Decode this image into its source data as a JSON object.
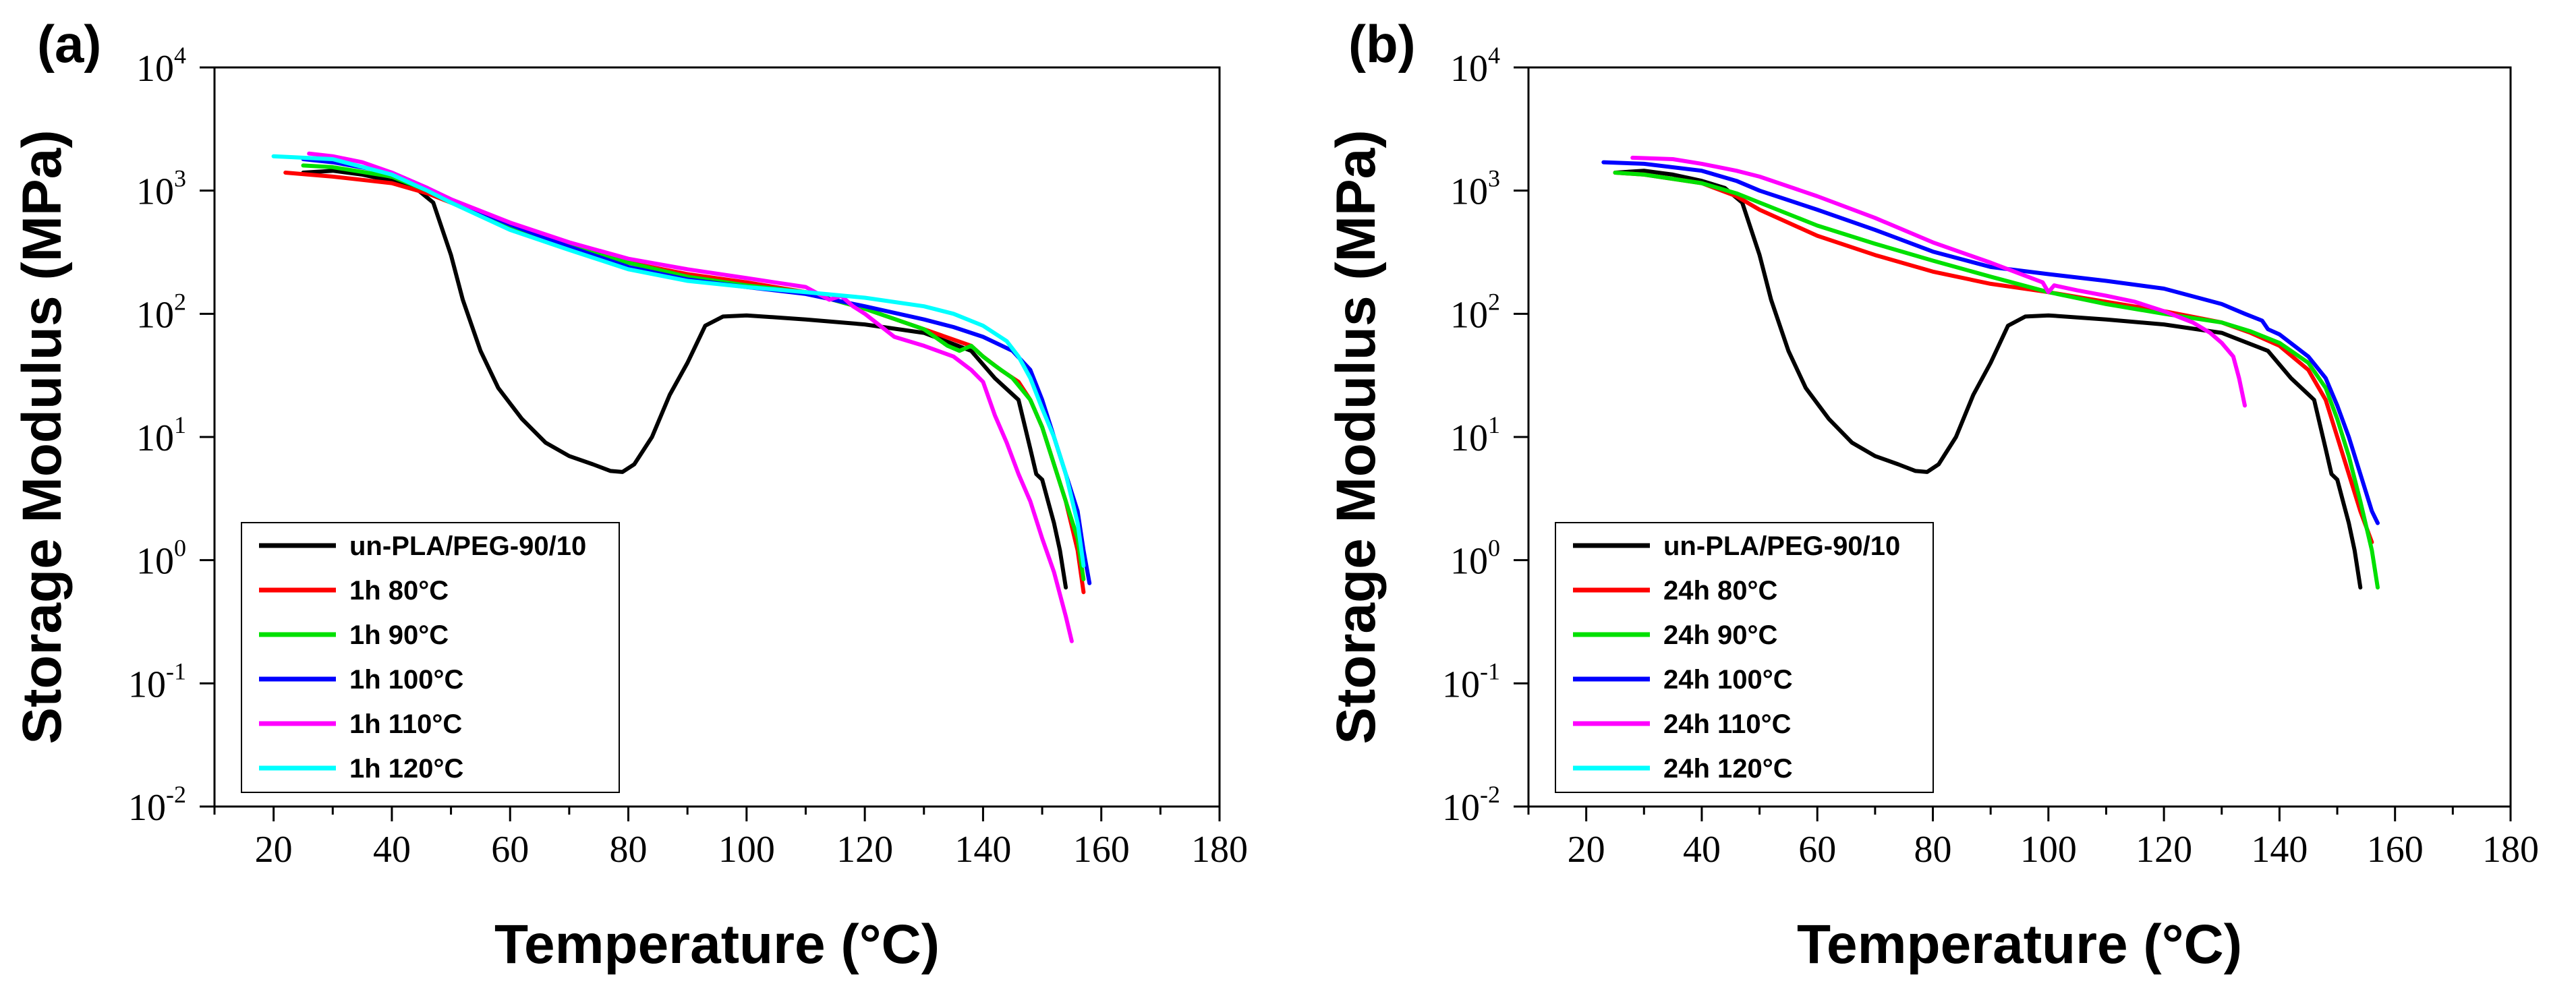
{
  "chart_data": [
    {
      "type": "line",
      "panel_label": "(a)",
      "xlabel": "Temperature (°C)",
      "ylabel": "Storage Modulus (MPa)",
      "xlim": [
        10,
        180
      ],
      "ylim": [
        0.01,
        10000
      ],
      "yscale": "log",
      "xticks": [
        20,
        40,
        60,
        80,
        100,
        120,
        140,
        160,
        180
      ],
      "xtick_labels": [
        "20",
        "40",
        "60",
        "80",
        "100",
        "120",
        "140",
        "160",
        "180"
      ],
      "yticks": [
        {
          "value": 0.01,
          "base": "10",
          "exp": "-2"
        },
        {
          "value": 0.1,
          "base": "10",
          "exp": "-1"
        },
        {
          "value": 1,
          "base": "10",
          "exp": "0"
        },
        {
          "value": 10,
          "base": "10",
          "exp": "1"
        },
        {
          "value": 100,
          "base": "10",
          "exp": "2"
        },
        {
          "value": 1000,
          "base": "10",
          "exp": "3"
        },
        {
          "value": 10000,
          "base": "10",
          "exp": "4"
        }
      ],
      "grid": false,
      "legend_position": "bottom-left",
      "series": [
        {
          "name": "un-PLA/PEG-90/10",
          "color": "#000000",
          "x": [
            25,
            30,
            35,
            40,
            44,
            47,
            50,
            52,
            55,
            58,
            62,
            66,
            70,
            74,
            77,
            79,
            81,
            84,
            87,
            90,
            93,
            96,
            100,
            110,
            120,
            130,
            138,
            142,
            146,
            148,
            149,
            150,
            151,
            152,
            153,
            154
          ],
          "y": [
            1400,
            1450,
            1350,
            1200,
            1050,
            800,
            300,
            130,
            50,
            25,
            14,
            9,
            7,
            6,
            5.3,
            5.2,
            6,
            10,
            22,
            40,
            80,
            95,
            97,
            90,
            82,
            70,
            50,
            30,
            20,
            8,
            5,
            4.5,
            3,
            2,
            1.2,
            0.6
          ]
        },
        {
          "name": "1h 80°C",
          "color": "#ff0000",
          "x": [
            22,
            30,
            40,
            46,
            50,
            60,
            70,
            80,
            90,
            100,
            110,
            120,
            130,
            138,
            140,
            143,
            146,
            148,
            150,
            152,
            154,
            156,
            157
          ],
          "y": [
            1400,
            1300,
            1150,
            950,
            800,
            500,
            350,
            260,
            210,
            180,
            150,
            110,
            75,
            55,
            45,
            35,
            28,
            20,
            12,
            6,
            3,
            1.2,
            0.55
          ]
        },
        {
          "name": "1h 90°C",
          "color": "#00e000",
          "x": [
            25,
            30,
            40,
            46,
            50,
            60,
            70,
            80,
            90,
            100,
            110,
            120,
            130,
            134,
            136,
            138,
            140,
            142,
            145,
            148,
            150,
            152,
            154,
            156,
            157
          ],
          "y": [
            1600,
            1550,
            1300,
            1000,
            800,
            500,
            360,
            260,
            200,
            170,
            150,
            110,
            75,
            55,
            50,
            55,
            45,
            38,
            30,
            20,
            12,
            6,
            3,
            1.5,
            0.7
          ]
        },
        {
          "name": "1h 100°C",
          "color": "#0000ff",
          "x": [
            25,
            30,
            40,
            46,
            50,
            60,
            70,
            80,
            90,
            100,
            110,
            120,
            130,
            135,
            140,
            145,
            148,
            150,
            152,
            154,
            156,
            157,
            158
          ],
          "y": [
            1800,
            1700,
            1400,
            1050,
            850,
            530,
            350,
            240,
            190,
            165,
            145,
            115,
            90,
            78,
            65,
            50,
            35,
            20,
            10,
            5,
            2.5,
            1.2,
            0.65
          ]
        },
        {
          "name": "1h 110°C",
          "color": "#ff00ff",
          "x": [
            26,
            30,
            35,
            40,
            46,
            50,
            60,
            70,
            80,
            90,
            100,
            110,
            114,
            116,
            118,
            120,
            125,
            130,
            135,
            138,
            140,
            142,
            144,
            146,
            148,
            150,
            152,
            154,
            155
          ],
          "y": [
            2000,
            1900,
            1700,
            1400,
            1050,
            850,
            550,
            380,
            280,
            230,
            195,
            165,
            130,
            140,
            115,
            100,
            65,
            55,
            45,
            35,
            28,
            15,
            9,
            5,
            3,
            1.5,
            0.8,
            0.35,
            0.22
          ]
        },
        {
          "name": "1h 120°C",
          "color": "#00ffff",
          "x": [
            20,
            30,
            40,
            46,
            50,
            60,
            70,
            80,
            90,
            100,
            110,
            120,
            130,
            135,
            140,
            144,
            146,
            148,
            150,
            152,
            154,
            156,
            157
          ],
          "y": [
            1900,
            1800,
            1350,
            1000,
            800,
            480,
            330,
            230,
            185,
            165,
            150,
            135,
            115,
            100,
            80,
            60,
            45,
            30,
            17,
            10,
            5,
            2,
            0.9
          ]
        }
      ]
    },
    {
      "type": "line",
      "panel_label": "(b)",
      "xlabel": "Temperature (°C)",
      "ylabel": "Storage Modulus (MPa)",
      "xlim": [
        10,
        180
      ],
      "ylim": [
        0.01,
        10000
      ],
      "yscale": "log",
      "xticks": [
        20,
        40,
        60,
        80,
        100,
        120,
        140,
        160,
        180
      ],
      "xtick_labels": [
        "20",
        "40",
        "60",
        "80",
        "100",
        "120",
        "140",
        "160",
        "180"
      ],
      "yticks": [
        {
          "value": 0.01,
          "base": "10",
          "exp": "-2"
        },
        {
          "value": 0.1,
          "base": "10",
          "exp": "-1"
        },
        {
          "value": 1,
          "base": "10",
          "exp": "0"
        },
        {
          "value": 10,
          "base": "10",
          "exp": "1"
        },
        {
          "value": 100,
          "base": "10",
          "exp": "2"
        },
        {
          "value": 1000,
          "base": "10",
          "exp": "3"
        },
        {
          "value": 10000,
          "base": "10",
          "exp": "4"
        }
      ],
      "grid": false,
      "legend_position": "bottom-left",
      "series": [
        {
          "name": "un-PLA/PEG-90/10",
          "color": "#000000",
          "x": [
            25,
            30,
            35,
            40,
            44,
            47,
            50,
            52,
            55,
            58,
            62,
            66,
            70,
            74,
            77,
            79,
            81,
            84,
            87,
            90,
            93,
            96,
            100,
            110,
            120,
            130,
            138,
            142,
            146,
            148,
            149,
            150,
            151,
            152,
            153,
            154
          ],
          "y": [
            1400,
            1450,
            1350,
            1200,
            1050,
            800,
            300,
            130,
            50,
            25,
            14,
            9,
            7,
            6,
            5.3,
            5.2,
            6,
            10,
            22,
            40,
            80,
            95,
            97,
            90,
            82,
            70,
            50,
            30,
            20,
            8,
            5,
            4.5,
            3,
            2,
            1.2,
            0.6
          ]
        },
        {
          "name": "24h 80°C",
          "color": "#ff0000",
          "x": [
            25,
            30,
            40,
            46,
            50,
            60,
            70,
            80,
            90,
            100,
            110,
            120,
            130,
            135,
            140,
            145,
            148,
            150,
            152,
            154,
            156
          ],
          "y": [
            1400,
            1350,
            1150,
            900,
            700,
            430,
            300,
            220,
            175,
            150,
            125,
            105,
            85,
            70,
            55,
            35,
            20,
            10,
            5,
            2.5,
            1.4
          ]
        },
        {
          "name": "24h 90°C",
          "color": "#00e000",
          "x": [
            25,
            30,
            40,
            46,
            50,
            60,
            70,
            80,
            90,
            100,
            110,
            120,
            130,
            135,
            140,
            145,
            148,
            150,
            152,
            154,
            156,
            157
          ],
          "y": [
            1400,
            1350,
            1150,
            950,
            800,
            520,
            370,
            270,
            200,
            150,
            120,
            100,
            85,
            72,
            58,
            40,
            25,
            14,
            7,
            3,
            1.2,
            0.6
          ]
        },
        {
          "name": "24h 100°C",
          "color": "#0000ff",
          "x": [
            23,
            30,
            40,
            46,
            50,
            60,
            70,
            80,
            90,
            100,
            110,
            120,
            130,
            134,
            137,
            138,
            140,
            145,
            148,
            150,
            152,
            154,
            156,
            157
          ],
          "y": [
            1700,
            1650,
            1450,
            1200,
            1000,
            700,
            480,
            320,
            240,
            210,
            185,
            160,
            120,
            100,
            88,
            75,
            68,
            45,
            30,
            18,
            10,
            5,
            2.5,
            2
          ]
        },
        {
          "name": "24h 110°C",
          "color": "#ff00ff",
          "x": [
            28,
            35,
            40,
            46,
            50,
            60,
            70,
            80,
            90,
            99,
            100,
            101,
            105,
            110,
            115,
            120,
            125,
            128,
            130,
            132,
            133,
            134
          ],
          "y": [
            1850,
            1800,
            1650,
            1450,
            1300,
            900,
            600,
            380,
            260,
            180,
            150,
            170,
            155,
            140,
            125,
            105,
            85,
            70,
            58,
            45,
            30,
            18
          ]
        },
        {
          "name": "24h 120°C",
          "color": "#00ffff",
          "x": [],
          "y": []
        }
      ]
    }
  ]
}
